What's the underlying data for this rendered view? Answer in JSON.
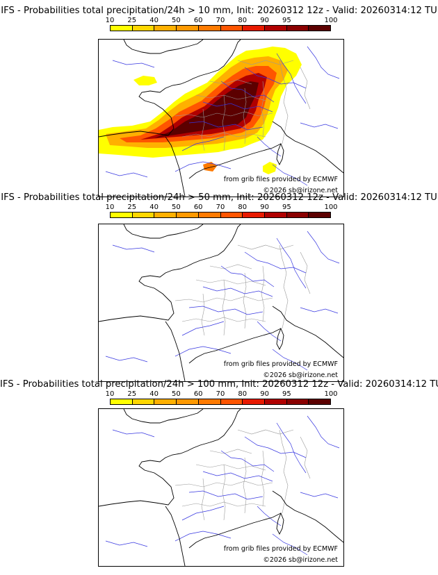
{
  "colorbar": {
    "levels": [
      "10",
      "25",
      "40",
      "50",
      "60",
      "70",
      "80",
      "90",
      "95",
      "100"
    ],
    "colors": [
      "#ffff00",
      "#ffd700",
      "#ffb000",
      "#ff9900",
      "#ff7a00",
      "#ff5500",
      "#e81a00",
      "#b00000",
      "#8a0000",
      "#5c0000"
    ]
  },
  "panels": [
    {
      "title": "IFS - Probabilities total precipitation/24h > 10 mm, Init: 20260312 12z - Valid: 20260314:12 TU",
      "credit_source": "from grib files provided by ECMWF",
      "credit_copyright": "©2026 sb@irizone.net",
      "precip_field": "wide"
    },
    {
      "title": "IFS - Probabilities total precipitation/24h > 50 mm, Init: 20260312 12z - Valid: 20260314:12 TU",
      "credit_source": "from grib files provided by ECMWF",
      "credit_copyright": "©2026 sb@irizone.net",
      "precip_field": "none"
    },
    {
      "title": "IFS - Probabilities total precipitation/24h > 100 mm, Init: 20260312 12z - Valid: 20260314:12 TU",
      "credit_source": "from grib files provided by ECMWF",
      "credit_copyright": "©2026 sb@irizone.net",
      "precip_field": "none"
    }
  ]
}
